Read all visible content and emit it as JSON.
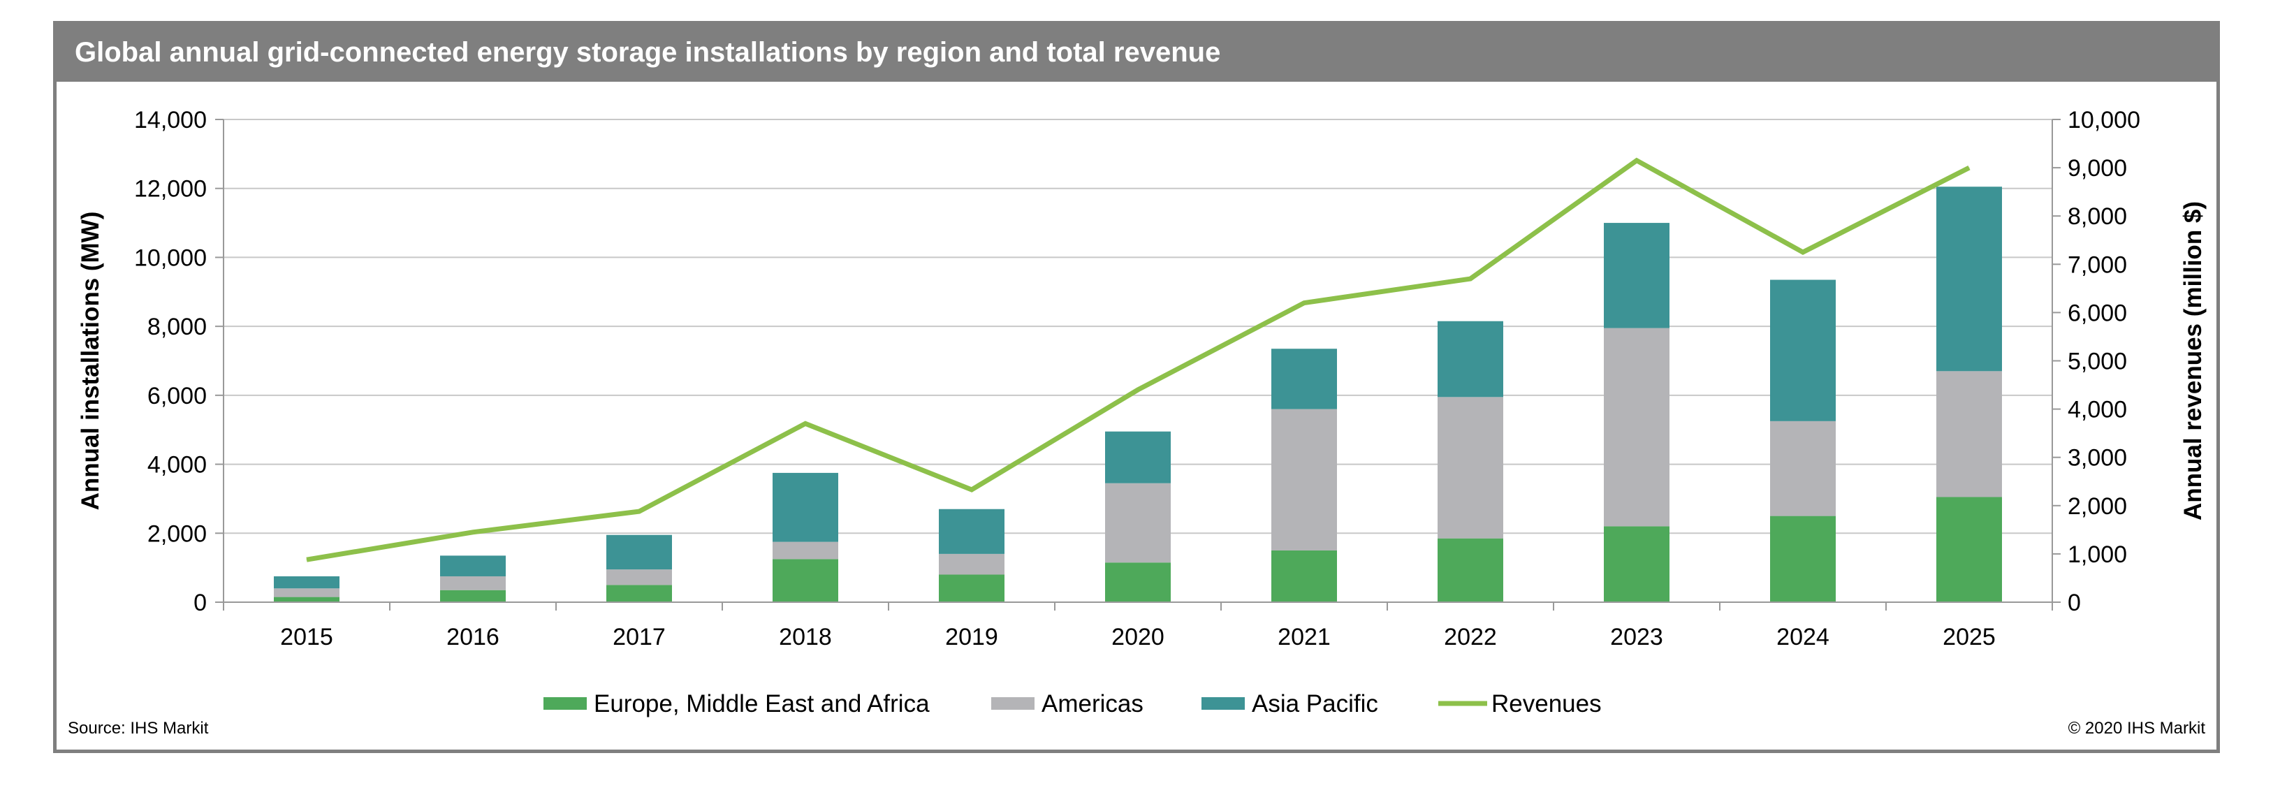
{
  "chart_data": {
    "type": "bar",
    "stacked": true,
    "title": "Global annual grid-connected energy storage installations by region and total revenue",
    "categories": [
      "2015",
      "2016",
      "2017",
      "2018",
      "2019",
      "2020",
      "2021",
      "2022",
      "2023",
      "2024",
      "2025"
    ],
    "series": [
      {
        "name": "Europe, Middle East and Africa",
        "type": "bar",
        "axis": "left",
        "color": "#4ea95a",
        "values": [
          150,
          350,
          500,
          1250,
          800,
          1150,
          1500,
          1850,
          2200,
          2500,
          3050
        ]
      },
      {
        "name": "Americas",
        "type": "bar",
        "axis": "left",
        "color": "#b4b4b7",
        "values": [
          250,
          400,
          450,
          500,
          600,
          2300,
          4100,
          4100,
          5750,
          2750,
          3650
        ]
      },
      {
        "name": "Asia Pacific",
        "type": "bar",
        "axis": "left",
        "color": "#3d9395",
        "values": [
          350,
          600,
          1000,
          2000,
          1300,
          1500,
          1750,
          2200,
          3050,
          4100,
          5350
        ]
      },
      {
        "name": "Revenues",
        "type": "line",
        "axis": "right",
        "color": "#8dc04a",
        "values": [
          880,
          1450,
          1880,
          3700,
          2330,
          4400,
          6200,
          6700,
          9150,
          7250,
          9000
        ]
      }
    ],
    "ylabel": "Annual installations (MW)",
    "ylim": [
      0,
      14000
    ],
    "yticks": [
      "0",
      "2,000",
      "4,000",
      "6,000",
      "8,000",
      "10,000",
      "12,000",
      "14,000"
    ],
    "y2label": "Annual revenues (million $)",
    "y2lim": [
      0,
      10000
    ],
    "y2ticks": [
      "0",
      "1,000",
      "2,000",
      "3,000",
      "4,000",
      "5,000",
      "6,000",
      "7,000",
      "8,000",
      "9,000",
      "10,000"
    ],
    "grid": true,
    "legend_position": "bottom"
  },
  "footer": {
    "source": "Source: IHS Markit",
    "copyright": "© 2020 IHS Markit"
  }
}
